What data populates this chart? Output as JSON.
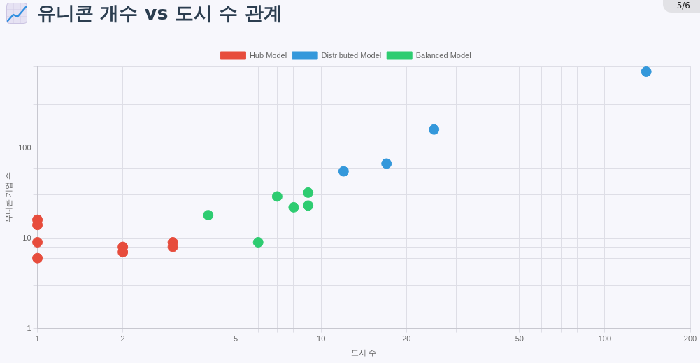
{
  "chart_data": {
    "type": "scatter",
    "title": "유니콘 개수 vs 도시 수 관계",
    "xlabel": "도시 수",
    "ylabel": "유니콘 기업 수",
    "annotations": [
      "5/6"
    ],
    "series": [
      {
        "name": "Hub Model",
        "color": "#e74c3c",
        "x": [
          1,
          1,
          1,
          1,
          2,
          2,
          3,
          3
        ],
        "values": [
          16,
          14,
          9,
          6,
          8,
          7,
          9,
          8
        ]
      },
      {
        "name": "Distributed Model",
        "color": "#3498db",
        "x": [
          12,
          17,
          25,
          140
        ],
        "values": [
          55,
          67,
          160,
          700
        ]
      },
      {
        "name": "Balanced Model",
        "color": "#2ecc71",
        "x": [
          4,
          6,
          7,
          8,
          9,
          9
        ],
        "values": [
          18,
          9,
          29,
          22,
          32,
          23
        ]
      }
    ],
    "xlim": [
      1,
      200
    ],
    "ylim": [
      1,
      800
    ],
    "xticks": [
      1,
      2,
      {
        "value": 3,
        "label": null
      },
      {
        "value": 4,
        "label": null
      },
      5,
      {
        "value": 6,
        "label": null
      },
      {
        "value": 7,
        "label": null
      },
      {
        "value": 8,
        "label": null
      },
      {
        "value": 9,
        "label": null
      },
      10,
      20,
      {
        "value": 30,
        "label": null
      },
      {
        "value": 40,
        "label": null
      },
      50,
      {
        "value": 60,
        "label": null
      },
      {
        "value": 70,
        "label": null
      },
      {
        "value": 80,
        "label": null
      },
      {
        "value": 90,
        "label": null
      },
      100,
      200
    ],
    "yticks": [
      1,
      {
        "value": 3,
        "label": null
      },
      {
        "value": 6,
        "label": null
      },
      {
        "value": 8,
        "label": null
      },
      10,
      {
        "value": 30,
        "label": null
      },
      {
        "value": 60,
        "label": null
      },
      {
        "value": 80,
        "label": null
      },
      100,
      {
        "value": 300,
        "label": null
      },
      {
        "value": 600,
        "label": null
      },
      {
        "value": 800,
        "label": null
      }
    ],
    "log": "xy",
    "grid": true,
    "legend": "top",
    "marker": "circle"
  }
}
